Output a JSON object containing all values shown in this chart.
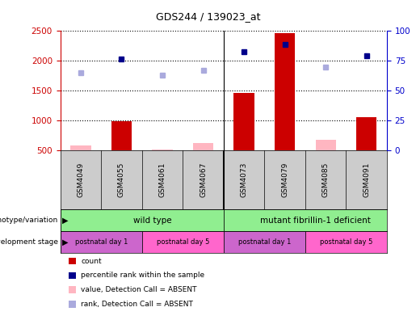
{
  "title": "GDS244 / 139023_at",
  "samples": [
    "GSM4049",
    "GSM4055",
    "GSM4061",
    "GSM4067",
    "GSM4073",
    "GSM4079",
    "GSM4085",
    "GSM4091"
  ],
  "count_values": [
    null,
    980,
    null,
    null,
    1460,
    2460,
    null,
    1060
  ],
  "count_absent_values": [
    580,
    null,
    510,
    620,
    null,
    null,
    680,
    null
  ],
  "rank_values": [
    null,
    2030,
    null,
    null,
    2150,
    2270,
    null,
    2080
  ],
  "rank_absent_values": [
    1800,
    null,
    1760,
    1840,
    null,
    null,
    1890,
    null
  ],
  "ylim_left": [
    500,
    2500
  ],
  "yticks_left": [
    500,
    1000,
    1500,
    2000,
    2500
  ],
  "yticks_right": [
    0,
    25,
    50,
    75,
    100
  ],
  "bar_color": "#CC0000",
  "bar_absent_color": "#FFB6C1",
  "rank_color": "#00008B",
  "rank_absent_color": "#AAAADD",
  "left_axis_color": "#CC0000",
  "right_axis_color": "#0000CC",
  "sample_bg": "#CCCCCC",
  "geno_wt_color": "#90EE90",
  "geno_mut_color": "#90EE90",
  "dev_day1_color": "#CC66CC",
  "dev_day5_color": "#FF66CC",
  "legend_items": [
    {
      "label": "count",
      "color": "#CC0000"
    },
    {
      "label": "percentile rank within the sample",
      "color": "#00008B"
    },
    {
      "label": "value, Detection Call = ABSENT",
      "color": "#FFB6C1"
    },
    {
      "label": "rank, Detection Call = ABSENT",
      "color": "#AAAADD"
    }
  ]
}
